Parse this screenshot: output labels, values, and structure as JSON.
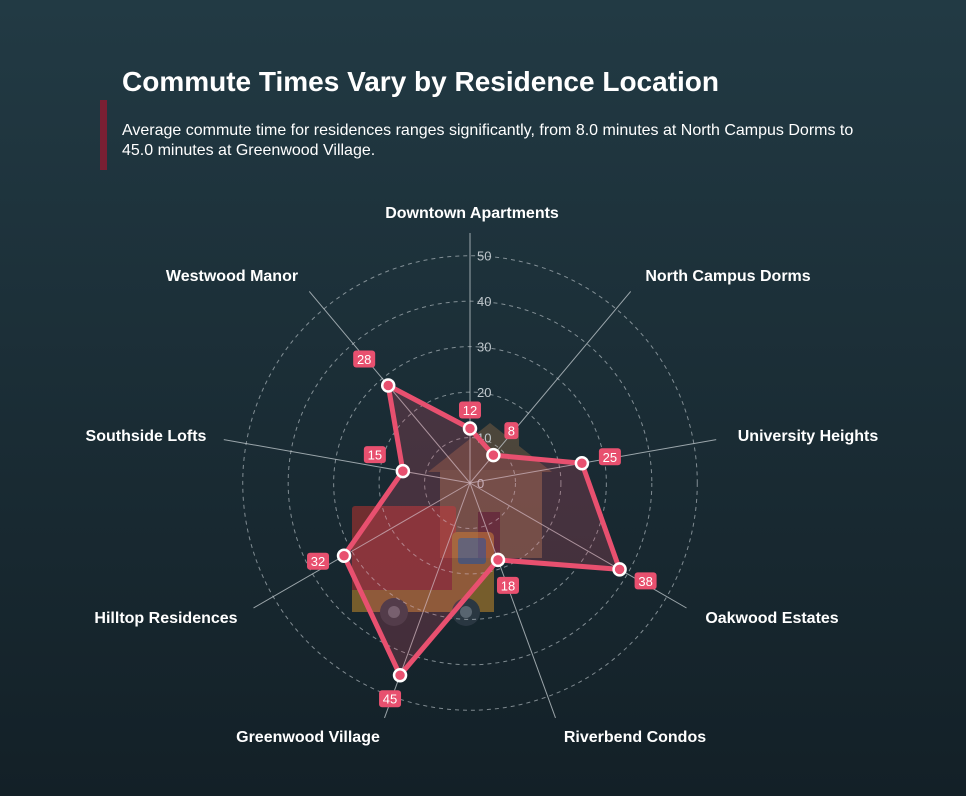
{
  "header": {
    "title": "Commute Times Vary by Residence Location",
    "subtitle": "Average commute time for residences ranges significantly, from 8.0 minutes at North Campus Dorms to 45.0 minutes at Greenwood Village."
  },
  "colors": {
    "series": "#e8506f",
    "accent": "#7a1f33",
    "grid": "#c7cfd3",
    "house": "#7a5a3a",
    "truck": "#b8332f"
  },
  "icons": [
    "house-icon",
    "moving-truck-icon"
  ],
  "chart_data": {
    "type": "radar",
    "title": "Commute Times Vary by Residence Location",
    "categories": [
      "Downtown Apartments",
      "North Campus Dorms",
      "University Heights",
      "Oakwood Estates",
      "Riverbend Condos",
      "Greenwood Village",
      "Hilltop Residences",
      "Southside Lofts",
      "Westwood Manor"
    ],
    "series": [
      {
        "values": [
          12,
          8,
          25,
          38,
          18,
          45,
          32,
          15,
          28
        ]
      }
    ],
    "value_labels": [
      "12",
      "8",
      "25",
      "38",
      "18",
      "45",
      "32",
      "15",
      "28"
    ],
    "radial_ticks": [
      0,
      10,
      20,
      30,
      40,
      50
    ],
    "range": [
      0,
      55
    ],
    "grid": true,
    "legend": "none"
  }
}
